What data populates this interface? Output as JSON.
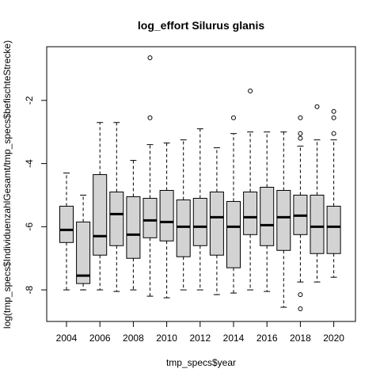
{
  "chart_data": {
    "type": "boxplot",
    "title": "log_effort Silurus glanis",
    "xlabel": "tmp_specs$year",
    "ylabel": "log(tmp_specs$IndividuenzahlGesamt/tmp_specs$befischteStrecke)",
    "x_tick_labels": [
      "2004",
      "2006",
      "2008",
      "2010",
      "2012",
      "2014",
      "2016",
      "2018",
      "2020"
    ],
    "y_ticks": [
      -8,
      -6,
      -4,
      -2
    ],
    "ylim": [
      -9.0,
      -0.3
    ],
    "grid": false,
    "legend": "none",
    "box_fill": "#d3d3d3",
    "stroke_color": "#000000",
    "boxes": [
      {
        "year": "2004",
        "whisker_low": -8.0,
        "q1": -6.5,
        "median": -6.1,
        "q3": -5.35,
        "whisker_high": -4.3,
        "outliers": []
      },
      {
        "year": "2005",
        "whisker_low": -8.0,
        "q1": -7.8,
        "median": -7.55,
        "q3": -5.85,
        "whisker_high": -5.0,
        "outliers": []
      },
      {
        "year": "2006",
        "whisker_low": -8.0,
        "q1": -6.9,
        "median": -6.3,
        "q3": -4.35,
        "whisker_high": -2.7,
        "outliers": []
      },
      {
        "year": "2007",
        "whisker_low": -8.05,
        "q1": -6.6,
        "median": -5.6,
        "q3": -4.9,
        "whisker_high": -2.7,
        "outliers": []
      },
      {
        "year": "2008",
        "whisker_low": -8.0,
        "q1": -7.0,
        "median": -6.25,
        "q3": -5.05,
        "whisker_high": -3.9,
        "outliers": []
      },
      {
        "year": "2009",
        "whisker_low": -8.2,
        "q1": -6.35,
        "median": -5.8,
        "q3": -5.1,
        "whisker_high": -3.4,
        "outliers": [
          -2.55,
          -0.65
        ]
      },
      {
        "year": "2010",
        "whisker_low": -8.25,
        "q1": -6.45,
        "median": -5.85,
        "q3": -4.85,
        "whisker_high": -3.35,
        "outliers": []
      },
      {
        "year": "2011",
        "whisker_low": -8.0,
        "q1": -6.95,
        "median": -6.0,
        "q3": -5.15,
        "whisker_high": -3.25,
        "outliers": []
      },
      {
        "year": "2012",
        "whisker_low": -8.0,
        "q1": -6.6,
        "median": -6.0,
        "q3": -5.1,
        "whisker_high": -2.9,
        "outliers": []
      },
      {
        "year": "2013",
        "whisker_low": -8.15,
        "q1": -6.9,
        "median": -5.7,
        "q3": -4.9,
        "whisker_high": -3.5,
        "outliers": []
      },
      {
        "year": "2014",
        "whisker_low": -8.1,
        "q1": -7.3,
        "median": -6.0,
        "q3": -5.2,
        "whisker_high": -3.05,
        "outliers": [
          -2.55
        ]
      },
      {
        "year": "2015",
        "whisker_low": -8.0,
        "q1": -6.25,
        "median": -5.7,
        "q3": -4.9,
        "whisker_high": -3.0,
        "outliers": [
          -1.7
        ]
      },
      {
        "year": "2016",
        "whisker_low": -8.05,
        "q1": -6.6,
        "median": -5.95,
        "q3": -4.75,
        "whisker_high": -3.0,
        "outliers": []
      },
      {
        "year": "2017",
        "whisker_low": -8.55,
        "q1": -6.75,
        "median": -5.7,
        "q3": -4.85,
        "whisker_high": -3.0,
        "outliers": []
      },
      {
        "year": "2018",
        "whisker_low": -7.75,
        "q1": -6.25,
        "median": -5.65,
        "q3": -5.0,
        "whisker_high": -3.45,
        "outliers": [
          -8.6,
          -8.15,
          -3.2,
          -3.05,
          -2.55
        ]
      },
      {
        "year": "2019",
        "whisker_low": -7.75,
        "q1": -6.85,
        "median": -6.0,
        "q3": -5.0,
        "whisker_high": -3.25,
        "outliers": [
          -2.2
        ]
      },
      {
        "year": "2020",
        "whisker_low": -7.6,
        "q1": -6.85,
        "median": -6.0,
        "q3": -5.35,
        "whisker_high": -3.25,
        "outliers": [
          -3.05,
          -2.55,
          -2.35
        ]
      }
    ]
  }
}
